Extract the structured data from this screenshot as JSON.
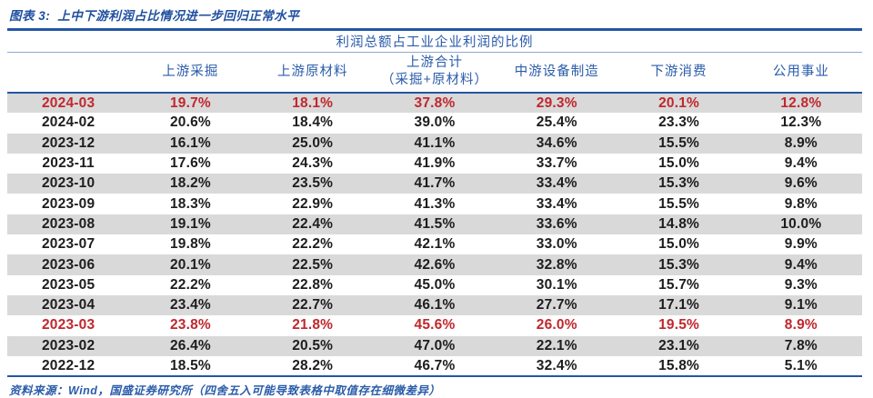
{
  "caption": {
    "label": "图表 3:",
    "title": "上中下游利润占比情况进一步回归正常水平"
  },
  "table": {
    "title": "利润总额占工业企业利润的比例",
    "columns": [
      {
        "line1": ""
      },
      {
        "line1": "上游采掘"
      },
      {
        "line1": "上游原材料"
      },
      {
        "line1": "上游合计",
        "line2": "（采掘+原材料）"
      },
      {
        "line1": "中游设备制造"
      },
      {
        "line1": "下游消费"
      },
      {
        "line1": "公用事业"
      }
    ],
    "rows": [
      {
        "date": "2024-03",
        "values": [
          "19.7%",
          "18.1%",
          "37.8%",
          "29.3%",
          "20.1%",
          "12.8%"
        ],
        "highlight": true
      },
      {
        "date": "2024-02",
        "values": [
          "20.6%",
          "18.4%",
          "39.0%",
          "25.4%",
          "23.3%",
          "12.3%"
        ],
        "highlight": false
      },
      {
        "date": "2023-12",
        "values": [
          "16.1%",
          "25.0%",
          "41.1%",
          "34.6%",
          "15.5%",
          "8.9%"
        ],
        "highlight": false
      },
      {
        "date": "2023-11",
        "values": [
          "17.6%",
          "24.3%",
          "41.9%",
          "33.7%",
          "15.0%",
          "9.4%"
        ],
        "highlight": false
      },
      {
        "date": "2023-10",
        "values": [
          "18.2%",
          "23.5%",
          "41.7%",
          "33.4%",
          "15.3%",
          "9.6%"
        ],
        "highlight": false
      },
      {
        "date": "2023-09",
        "values": [
          "18.3%",
          "22.9%",
          "41.3%",
          "33.4%",
          "15.5%",
          "9.8%"
        ],
        "highlight": false
      },
      {
        "date": "2023-08",
        "values": [
          "19.1%",
          "22.4%",
          "41.5%",
          "33.6%",
          "14.8%",
          "10.0%"
        ],
        "highlight": false
      },
      {
        "date": "2023-07",
        "values": [
          "19.8%",
          "22.2%",
          "42.1%",
          "33.0%",
          "15.0%",
          "9.9%"
        ],
        "highlight": false
      },
      {
        "date": "2023-06",
        "values": [
          "20.1%",
          "22.5%",
          "42.6%",
          "32.8%",
          "15.3%",
          "9.4%"
        ],
        "highlight": false
      },
      {
        "date": "2023-05",
        "values": [
          "22.2%",
          "22.8%",
          "45.0%",
          "30.1%",
          "15.7%",
          "9.3%"
        ],
        "highlight": false
      },
      {
        "date": "2023-04",
        "values": [
          "23.4%",
          "22.7%",
          "46.1%",
          "27.7%",
          "17.1%",
          "9.1%"
        ],
        "highlight": false
      },
      {
        "date": "2023-03",
        "values": [
          "23.8%",
          "21.8%",
          "45.6%",
          "26.0%",
          "19.5%",
          "8.9%"
        ],
        "highlight": true
      },
      {
        "date": "2023-02",
        "values": [
          "26.4%",
          "20.5%",
          "47.0%",
          "22.1%",
          "23.1%",
          "7.8%"
        ],
        "highlight": false
      },
      {
        "date": "2022-12",
        "values": [
          "18.5%",
          "28.2%",
          "46.7%",
          "32.4%",
          "15.8%",
          "5.1%"
        ],
        "highlight": false
      }
    ]
  },
  "footer": {
    "source": "资料来源：Wind，国盛证券研究所（四舍五入可能导致表格中取值存在细微差异）"
  },
  "colors": {
    "accent_blue": "#2a5caa",
    "rule_blue": "#2456a4",
    "highlight_red": "#c1272d",
    "stripe_gray": "#d9d9d9",
    "text_black": "#1d1d1f"
  },
  "chart_data": {
    "type": "table",
    "title": "利润总额占工业企业利润的比例",
    "figure_caption": "图表 3: 上中下游利润占比情况进一步回归正常水平",
    "categories": [
      "2024-03",
      "2024-02",
      "2023-12",
      "2023-11",
      "2023-10",
      "2023-09",
      "2023-08",
      "2023-07",
      "2023-06",
      "2023-05",
      "2023-04",
      "2023-03",
      "2023-02",
      "2022-12"
    ],
    "series": [
      {
        "name": "上游采掘",
        "values": [
          19.7,
          20.6,
          16.1,
          17.6,
          18.2,
          18.3,
          19.1,
          19.8,
          20.1,
          22.2,
          23.4,
          23.8,
          26.4,
          18.5
        ]
      },
      {
        "name": "上游原材料",
        "values": [
          18.1,
          18.4,
          25.0,
          24.3,
          23.5,
          22.9,
          22.4,
          22.2,
          22.5,
          22.8,
          22.7,
          21.8,
          20.5,
          28.2
        ]
      },
      {
        "name": "上游合计（采掘+原材料）",
        "values": [
          37.8,
          39.0,
          41.1,
          41.9,
          41.7,
          41.3,
          41.5,
          42.1,
          42.6,
          45.0,
          46.1,
          45.6,
          47.0,
          46.7
        ]
      },
      {
        "name": "中游设备制造",
        "values": [
          29.3,
          25.4,
          34.6,
          33.7,
          33.4,
          33.4,
          33.6,
          33.0,
          32.8,
          30.1,
          27.7,
          26.0,
          22.1,
          32.4
        ]
      },
      {
        "name": "下游消费",
        "values": [
          20.1,
          23.3,
          15.5,
          15.0,
          15.3,
          15.5,
          14.8,
          15.0,
          15.3,
          15.7,
          17.1,
          19.5,
          23.1,
          15.8
        ]
      },
      {
        "name": "公用事业",
        "values": [
          12.8,
          12.3,
          8.9,
          9.4,
          9.6,
          9.8,
          10.0,
          9.9,
          9.4,
          9.3,
          9.1,
          8.9,
          7.8,
          5.1
        ]
      }
    ],
    "units": "percent",
    "highlighted_rows": [
      "2024-03",
      "2023-03"
    ]
  }
}
